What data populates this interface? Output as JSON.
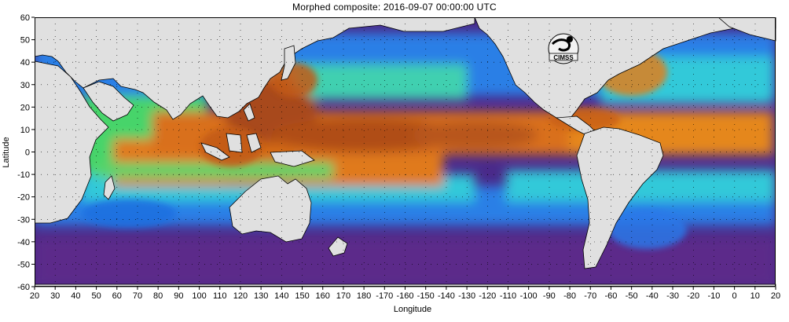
{
  "header": {
    "title": "Morphed composite: 2016-09-07 00:00:00 UTC"
  },
  "axes": {
    "x_label": "Longitude",
    "y_label": "Latitude",
    "x_ticks": [
      "20",
      "30",
      "40",
      "50",
      "60",
      "70",
      "80",
      "90",
      "100",
      "110",
      "120",
      "130",
      "140",
      "150",
      "160",
      "170",
      "180",
      "-170",
      "-160",
      "-150",
      "-140",
      "-130",
      "-120",
      "-110",
      "-100",
      "-90",
      "-80",
      "-70",
      "-60",
      "-50",
      "-40",
      "-30",
      "-20",
      "-10",
      "0",
      "10",
      "20"
    ],
    "y_ticks": [
      "60",
      "50",
      "40",
      "30",
      "20",
      "10",
      "0",
      "-10",
      "-20",
      "-30",
      "-40",
      "-50",
      "-60"
    ]
  },
  "map": {
    "extent": {
      "lon_start": 20,
      "lon_end": 380,
      "lat_min": -60,
      "lat_max": 60
    },
    "land_color": "#e0e0e0",
    "grid": "dotted",
    "colors": {
      "dry": "#5b1f86",
      "mid": "#3fa0ff",
      "moist": "#55dd77",
      "wet": "#e07010",
      "very_wet": "#a04010"
    }
  },
  "logo": {
    "text": "CIMSS"
  }
}
